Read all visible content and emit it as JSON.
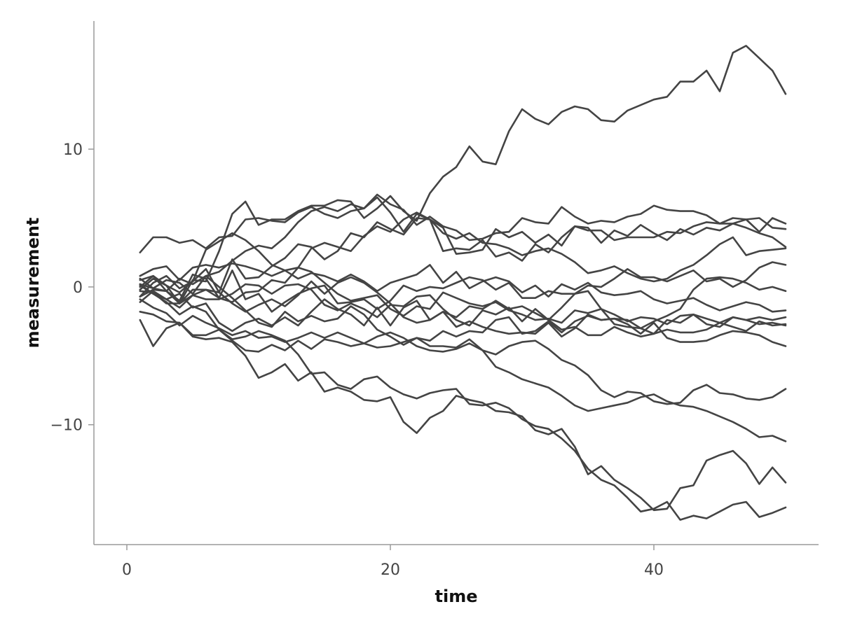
{
  "chart_data": {
    "type": "line",
    "xlabel": "time",
    "ylabel": "measurement",
    "xlim": [
      -2.5,
      52.5
    ],
    "ylim": [
      -18.7,
      19.3
    ],
    "x_ticks": [
      {
        "value": 0,
        "label": "0"
      },
      {
        "value": 20,
        "label": "20"
      },
      {
        "value": 40,
        "label": "40"
      }
    ],
    "y_ticks": [
      {
        "value": -10,
        "label": "−10"
      },
      {
        "value": 0,
        "label": "0"
      },
      {
        "value": 10,
        "label": "10"
      }
    ],
    "grid": false,
    "legend": "none",
    "line_color": "#444444",
    "x": [
      1,
      2,
      3,
      4,
      5,
      6,
      7,
      8,
      9,
      10,
      11,
      12,
      13,
      14,
      15,
      16,
      17,
      18,
      19,
      20,
      21,
      22,
      23,
      24,
      25,
      26,
      27,
      28,
      29,
      30,
      31,
      32,
      33,
      34,
      35,
      36,
      37,
      38,
      39,
      40,
      41,
      42,
      43,
      44,
      45,
      46,
      47,
      48,
      49,
      50
    ],
    "series": [
      {
        "values": [
          0.0,
          0.8,
          -0.3,
          -1.2,
          0.5,
          0.4,
          2.6,
          5.3,
          6.2,
          4.5,
          4.9,
          4.9,
          5.5,
          5.9,
          5.9,
          6.3,
          6.2,
          5.0,
          5.7,
          6.6,
          5.5,
          4.8,
          6.8,
          8.0,
          8.7,
          10.2,
          9.1,
          8.9,
          11.3,
          12.9,
          12.2,
          11.8,
          12.7,
          13.1,
          12.9,
          12.1,
          12.0,
          12.8,
          13.2,
          13.6,
          13.8,
          14.9,
          14.9,
          15.7,
          14.2,
          17.0,
          17.5,
          16.6,
          15.7,
          14.0
        ]
      },
      {
        "values": [
          2.5,
          3.6,
          3.6,
          3.2,
          3.4,
          2.8,
          3.6,
          3.7,
          4.9,
          5.0,
          4.8,
          4.7,
          5.4,
          5.8,
          5.3,
          5.0,
          5.5,
          5.7,
          6.7,
          6.0,
          5.6,
          4.5,
          5.1,
          4.4,
          4.1,
          3.4,
          3.5,
          3.9,
          4.0,
          5.0,
          4.7,
          4.6,
          5.8,
          5.1,
          4.6,
          4.8,
          4.7,
          5.1,
          5.3,
          5.9,
          5.6,
          5.5,
          5.5,
          5.2,
          4.6,
          4.6,
          4.3,
          3.9,
          3.6,
          2.9
        ]
      },
      {
        "values": [
          -0.3,
          -0.4,
          -1.2,
          -1.2,
          -0.2,
          -0.2,
          -0.4,
          2.0,
          0.6,
          0.7,
          1.5,
          2.1,
          3.1,
          2.9,
          2.0,
          2.6,
          3.9,
          3.6,
          4.7,
          4.2,
          3.8,
          5.0,
          4.9,
          4.3,
          2.4,
          2.5,
          2.7,
          4.2,
          3.6,
          4.0,
          3.2,
          3.8,
          3.0,
          4.4,
          4.1,
          4.1,
          3.4,
          3.6,
          3.6,
          3.6,
          4.0,
          3.9,
          4.4,
          4.7,
          4.6,
          5.0,
          4.9,
          4.0,
          5.0,
          4.6
        ]
      },
      {
        "values": [
          0.6,
          -0.1,
          0.5,
          0.3,
          -0.5,
          0.8,
          1.1,
          1.9,
          2.6,
          3.0,
          2.8,
          3.6,
          4.7,
          5.5,
          5.8,
          5.5,
          6.0,
          5.7,
          6.5,
          5.4,
          4.0,
          5.3,
          4.9,
          3.9,
          3.5,
          3.9,
          3.2,
          3.1,
          2.8,
          2.3,
          2.6,
          2.8,
          2.4,
          1.8,
          1.0,
          1.2,
          1.5,
          1.0,
          0.6,
          0.4,
          0.6,
          1.2,
          1.6,
          2.3,
          3.1,
          3.6,
          2.3,
          2.6,
          2.7,
          2.8
        ]
      },
      {
        "values": [
          0.8,
          1.3,
          1.5,
          0.5,
          1.4,
          1.6,
          1.4,
          1.7,
          1.5,
          1.2,
          0.8,
          1.2,
          0.6,
          1.0,
          0.8,
          0.4,
          0.9,
          0.4,
          -0.3,
          0.3,
          0.6,
          0.9,
          1.6,
          0.3,
          1.1,
          -0.1,
          0.4,
          0.7,
          0.4,
          -0.4,
          0.1,
          -0.7,
          0.2,
          -0.2,
          0.3,
          -0.4,
          -0.6,
          -0.5,
          -0.3,
          -0.9,
          -1.2,
          -1.0,
          -0.8,
          -1.3,
          -1.7,
          -1.4,
          -1.1,
          -1.3,
          -1.8,
          -1.7
        ]
      },
      {
        "values": [
          -0.2,
          0.6,
          0.1,
          -1.2,
          -0.6,
          -0.2,
          -0.8,
          -1.1,
          -0.4,
          -0.3,
          0.5,
          0.3,
          1.4,
          2.8,
          3.2,
          2.9,
          2.6,
          3.7,
          4.4,
          4.0,
          4.9,
          5.4,
          4.9,
          2.6,
          2.8,
          2.7,
          3.4,
          2.2,
          2.5,
          1.9,
          3.1,
          2.5,
          3.6,
          4.4,
          4.3,
          3.2,
          4.1,
          3.7,
          4.5,
          3.9,
          3.4,
          4.2,
          3.8,
          4.3,
          4.1,
          4.6,
          4.9,
          5.0,
          4.3,
          4.2
        ]
      },
      {
        "values": [
          -0.7,
          -0.2,
          -0.3,
          -1.0,
          0.9,
          0.6,
          -0.8,
          1.2,
          -0.9,
          -0.5,
          -1.8,
          -1.1,
          -0.5,
          -0.1,
          0.1,
          -1.2,
          -1.1,
          -0.9,
          -1.6,
          -1.0,
          0.1,
          -0.3,
          0.0,
          -0.1,
          0.3,
          0.7,
          0.5,
          -0.2,
          0.3,
          -0.8,
          -0.8,
          -0.3,
          -0.5,
          -0.5,
          0.1,
          0.0,
          0.6,
          1.3,
          0.7,
          0.7,
          0.4,
          0.8,
          1.2,
          0.4,
          0.6,
          0.0,
          0.5,
          1.4,
          1.8,
          1.6
        ]
      },
      {
        "values": [
          0.1,
          -0.5,
          -0.9,
          -1.5,
          -0.6,
          -0.9,
          -0.9,
          -0.5,
          0.2,
          0.1,
          -0.5,
          0.1,
          0.2,
          -0.2,
          -1.3,
          -1.7,
          -1.2,
          -1.6,
          -2.2,
          -1.3,
          -1.4,
          -0.7,
          -0.6,
          -1.6,
          -2.4,
          -2.8,
          -1.7,
          -2.0,
          -1.5,
          -2.5,
          -1.6,
          -2.4,
          -1.5,
          -0.5,
          -0.3,
          -1.6,
          -2.7,
          -2.9,
          -3.0,
          -2.5,
          -2.1,
          -1.6,
          -0.2,
          0.6,
          0.7,
          0.6,
          0.3,
          -0.2,
          0.0,
          -0.3
        ]
      },
      {
        "values": [
          0.2,
          -0.1,
          -0.3,
          0.6,
          0.2,
          0.8,
          0.0,
          -0.8,
          -1.7,
          -2.6,
          -2.9,
          -1.8,
          -2.5,
          -2.1,
          -2.5,
          -2.3,
          -1.4,
          -2.0,
          -3.1,
          -3.6,
          -4.2,
          -3.7,
          -3.9,
          -3.2,
          -3.6,
          -3.2,
          -3.3,
          -2.4,
          -2.2,
          -3.4,
          -3.2,
          -2.5,
          -3.3,
          -2.5,
          -2.1,
          -2.4,
          -2.3,
          -2.4,
          -3.0,
          -3.4,
          -2.4,
          -2.6,
          -2.0,
          -2.7,
          -2.9,
          -2.2,
          -2.4,
          -2.2,
          -2.4,
          -2.2
        ]
      },
      {
        "values": [
          -1.1,
          -0.3,
          -0.9,
          -0.5,
          -1.5,
          -1.2,
          -2.6,
          -3.2,
          -2.6,
          -2.3,
          -2.8,
          -2.2,
          -2.8,
          -1.8,
          -0.9,
          -1.6,
          -2.0,
          -2.8,
          -1.5,
          -2.8,
          -1.5,
          -1.0,
          -2.4,
          -1.8,
          -2.9,
          -2.5,
          -2.9,
          -3.2,
          -3.4,
          -3.3,
          -3.4,
          -2.6,
          -3.6,
          -3.0,
          -2.0,
          -2.4,
          -2.3,
          -2.7,
          -3.4,
          -2.6,
          -3.7,
          -4.0,
          -4.0,
          -3.9,
          -3.5,
          -3.2,
          -3.3,
          -3.5,
          -4.0,
          -4.3
        ]
      },
      {
        "values": [
          -0.9,
          -1.5,
          -1.9,
          -2.8,
          -2.1,
          -2.6,
          -3.0,
          -3.5,
          -3.2,
          -3.7,
          -3.6,
          -4.0,
          -3.7,
          -3.3,
          -3.7,
          -3.3,
          -3.7,
          -4.1,
          -4.4,
          -4.3,
          -4.0,
          -3.7,
          -4.3,
          -4.3,
          -4.4,
          -3.8,
          -4.6,
          -4.9,
          -4.3,
          -4.0,
          -3.9,
          -4.5,
          -5.3,
          -5.7,
          -6.4,
          -7.5,
          -8.0,
          -7.6,
          -7.7,
          -8.3,
          -8.5,
          -8.4,
          -7.5,
          -7.1,
          -7.7,
          -7.8,
          -8.1,
          -8.2,
          -8.0,
          -7.4
        ]
      },
      {
        "values": [
          -2.4,
          -4.3,
          -3.0,
          -2.6,
          -3.5,
          -3.5,
          -3.1,
          -3.9,
          -4.6,
          -4.7,
          -4.2,
          -4.6,
          -3.9,
          -4.5,
          -3.8,
          -4.0,
          -4.3,
          -4.1,
          -3.6,
          -3.3,
          -3.7,
          -4.3,
          -4.6,
          -4.7,
          -4.5,
          -4.1,
          -4.6,
          -5.8,
          -6.2,
          -6.7,
          -7.0,
          -7.3,
          -7.9,
          -8.6,
          -9.0,
          -8.8,
          -8.6,
          -8.4,
          -8.0,
          -7.8,
          -8.3,
          -8.6,
          -8.7,
          -9.0,
          -9.4,
          -9.8,
          -10.3,
          -10.9,
          -10.8,
          -11.2
        ]
      },
      {
        "values": [
          -1.8,
          -2.0,
          -2.5,
          -2.6,
          -3.6,
          -3.8,
          -3.7,
          -4.0,
          -5.0,
          -6.6,
          -6.2,
          -5.6,
          -6.8,
          -6.2,
          -7.6,
          -7.3,
          -7.6,
          -8.2,
          -8.3,
          -8.0,
          -9.8,
          -10.6,
          -9.5,
          -9.0,
          -7.9,
          -8.2,
          -8.4,
          -9.0,
          -9.1,
          -9.4,
          -10.4,
          -10.7,
          -10.3,
          -11.6,
          -13.6,
          -13.0,
          -14.0,
          -14.6,
          -15.3,
          -16.2,
          -16.1,
          -14.6,
          -14.4,
          -12.6,
          -12.2,
          -11.9,
          -12.8,
          -14.3,
          -13.1,
          -14.2
        ]
      },
      {
        "values": [
          0.2,
          -0.5,
          -1.1,
          -2.0,
          -1.4,
          -1.8,
          -3.1,
          -3.8,
          -3.6,
          -3.2,
          -3.5,
          -3.9,
          -4.9,
          -6.3,
          -6.2,
          -7.1,
          -7.4,
          -6.7,
          -6.5,
          -7.3,
          -7.8,
          -8.1,
          -7.7,
          -7.5,
          -7.4,
          -8.5,
          -8.6,
          -8.4,
          -8.8,
          -9.6,
          -10.1,
          -10.3,
          -11.0,
          -11.9,
          -13.2,
          -14.0,
          -14.4,
          -15.3,
          -16.3,
          -16.1,
          -15.6,
          -16.9,
          -16.6,
          -16.8,
          -16.3,
          -15.8,
          -15.6,
          -16.7,
          -16.4,
          -16.0
        ]
      },
      {
        "values": [
          -0.7,
          0.3,
          0.8,
          -0.1,
          0.4,
          1.3,
          -0.4,
          -1.2,
          -1.8,
          -1.3,
          -0.9,
          -1.4,
          -0.6,
          0.4,
          -0.5,
          0.3,
          0.7,
          0.3,
          -0.4,
          -1.2,
          -2.2,
          -2.6,
          -2.4,
          -1.8,
          -2.2,
          -1.4,
          -1.6,
          -1.0,
          -1.6,
          -1.4,
          -1.9,
          -2.4,
          -3.1,
          -2.9,
          -3.5,
          -3.5,
          -2.9,
          -3.3,
          -3.6,
          -3.4,
          -3.1,
          -3.3,
          -3.3,
          -3.1,
          -2.6,
          -2.9,
          -3.2,
          -2.5,
          -2.8,
          -2.7
        ]
      },
      {
        "values": [
          0.5,
          0.8,
          0.1,
          -0.4,
          0.4,
          2.7,
          3.3,
          3.9,
          3.4,
          2.6,
          1.6,
          1.2,
          1.4,
          1.1,
          0.3,
          -0.5,
          -1.0,
          -0.8,
          -0.6,
          -1.6,
          -2.1,
          -1.4,
          -1.6,
          -0.4,
          -0.8,
          -1.2,
          -1.4,
          -1.1,
          -1.7,
          -2.0,
          -2.4,
          -2.3,
          -2.6,
          -1.7,
          -1.9,
          -1.6,
          -2.0,
          -2.5,
          -2.2,
          -2.3,
          -2.7,
          -2.1,
          -2.0,
          -2.3,
          -2.6,
          -2.2,
          -2.4,
          -2.7,
          -2.6,
          -2.8
        ]
      }
    ]
  }
}
